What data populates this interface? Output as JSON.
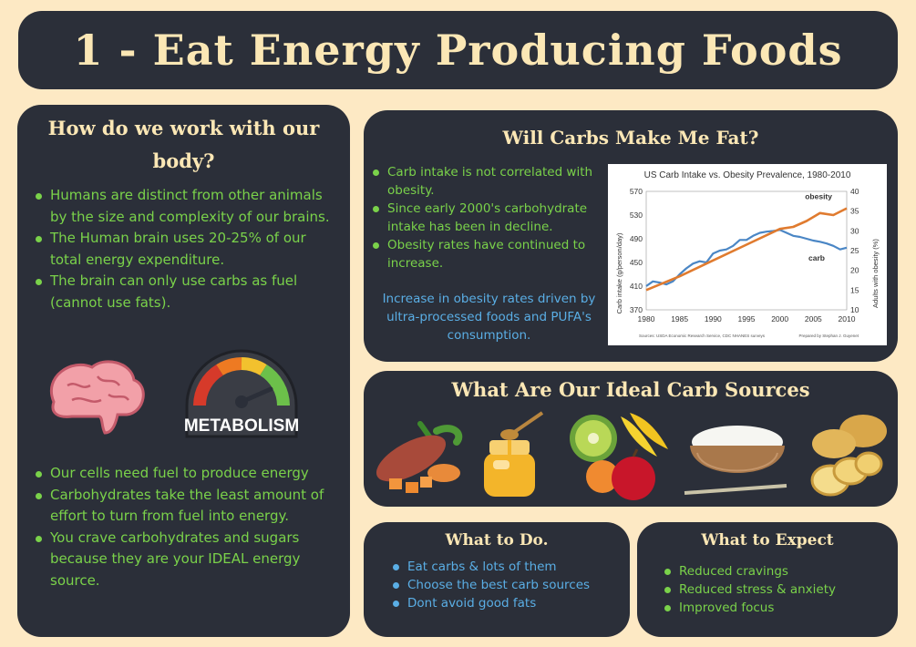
{
  "header": {
    "title": "1 - Eat Energy Producing Foods"
  },
  "body_section": {
    "title": "How do we work with our body?",
    "points_top": [
      "Humans are distinct from other animals by the size and complexity of our brains.",
      "The Human brain uses 20-25% of our total energy expenditure.",
      "The brain can only use carbs as fuel (cannot use fats)."
    ],
    "metabolism_label": "METABOLISM",
    "points_bottom": [
      "Our cells need fuel to produce energy",
      "Carbohydrates take the least amount of effort to turn from fuel into energy.",
      "You crave carbohydrates and sugars because they are your IDEAL energy source."
    ]
  },
  "carbs_section": {
    "title": "Will Carbs Make Me Fat?",
    "points": [
      "Carb intake is not correlated with obesity.",
      "Since early 2000's carbohydrate intake has been in decline.",
      "Obesity rates have continued to increase."
    ],
    "note": "Increase in obesity rates driven by ultra-processed foods and PUFA's consumption."
  },
  "chart_data": {
    "type": "line",
    "title": "US Carb Intake vs. Obesity Prevalence, 1980-2010",
    "xlabel": "",
    "ylabel": "Carb intake (g/person/day)",
    "ylabel_right": "Adults with obesity (%)",
    "xlim": [
      1980,
      2010
    ],
    "ylim": [
      370,
      570
    ],
    "ylim_right": [
      10,
      40
    ],
    "x_ticks": [
      "1980",
      "1985",
      "1990",
      "1995",
      "2000",
      "2005",
      "2010"
    ],
    "y_ticks": [
      "370",
      "410",
      "450",
      "490",
      "530",
      "570"
    ],
    "y_ticks_right": [
      "10",
      "15",
      "20",
      "25",
      "30",
      "35",
      "40"
    ],
    "series": [
      {
        "name": "carb",
        "axis": "left",
        "color": "#4a86c5",
        "x": [
          1980,
          1981,
          1982,
          1983,
          1984,
          1985,
          1986,
          1987,
          1988,
          1989,
          1990,
          1991,
          1992,
          1993,
          1994,
          1995,
          1996,
          1997,
          1998,
          1999,
          2000,
          2001,
          2002,
          2003,
          2004,
          2005,
          2006,
          2007,
          2008,
          2009,
          2010
        ],
        "values": [
          410,
          418,
          416,
          413,
          418,
          430,
          440,
          448,
          452,
          450,
          465,
          470,
          472,
          478,
          488,
          488,
          495,
          500,
          502,
          503,
          505,
          500,
          495,
          493,
          490,
          487,
          485,
          482,
          478,
          472,
          475
        ]
      },
      {
        "name": "obesity",
        "axis": "right",
        "color": "#e07b2f",
        "x": [
          1980,
          1985,
          1990,
          1995,
          2000,
          2002,
          2004,
          2006,
          2008,
          2010
        ],
        "values": [
          15,
          18.5,
          22.5,
          26.5,
          30.5,
          31,
          32.5,
          34.5,
          34,
          35.7
        ]
      }
    ],
    "sources": "Sources: USDA Economic Research Service, CDC NHANES surveys",
    "credit": "Prepared by Stephan J. Guyenet"
  },
  "sources_section": {
    "title": "What Are Our Ideal Carb Sources"
  },
  "todo_section": {
    "title": "What to Do.",
    "points": [
      "Eat carbs & lots of them",
      "Choose the best carb sources",
      "Dont avoid good fats"
    ]
  },
  "expect_section": {
    "title": "What to Expect",
    "points": [
      "Reduced cravings",
      "Reduced stress & anxiety",
      "Improved focus"
    ]
  },
  "colors": {
    "background": "#fde9c4",
    "panel": "#2b2f39",
    "heading": "#fbe7b5",
    "green": "#7ad24a",
    "blue": "#5aaee5"
  },
  "icons": [
    "brain-icon",
    "metabolism-gauge-icon",
    "sweet-potato-icon",
    "honey-jar-icon",
    "fruit-bowl-icon",
    "rice-bowl-icon",
    "potato-icon"
  ]
}
